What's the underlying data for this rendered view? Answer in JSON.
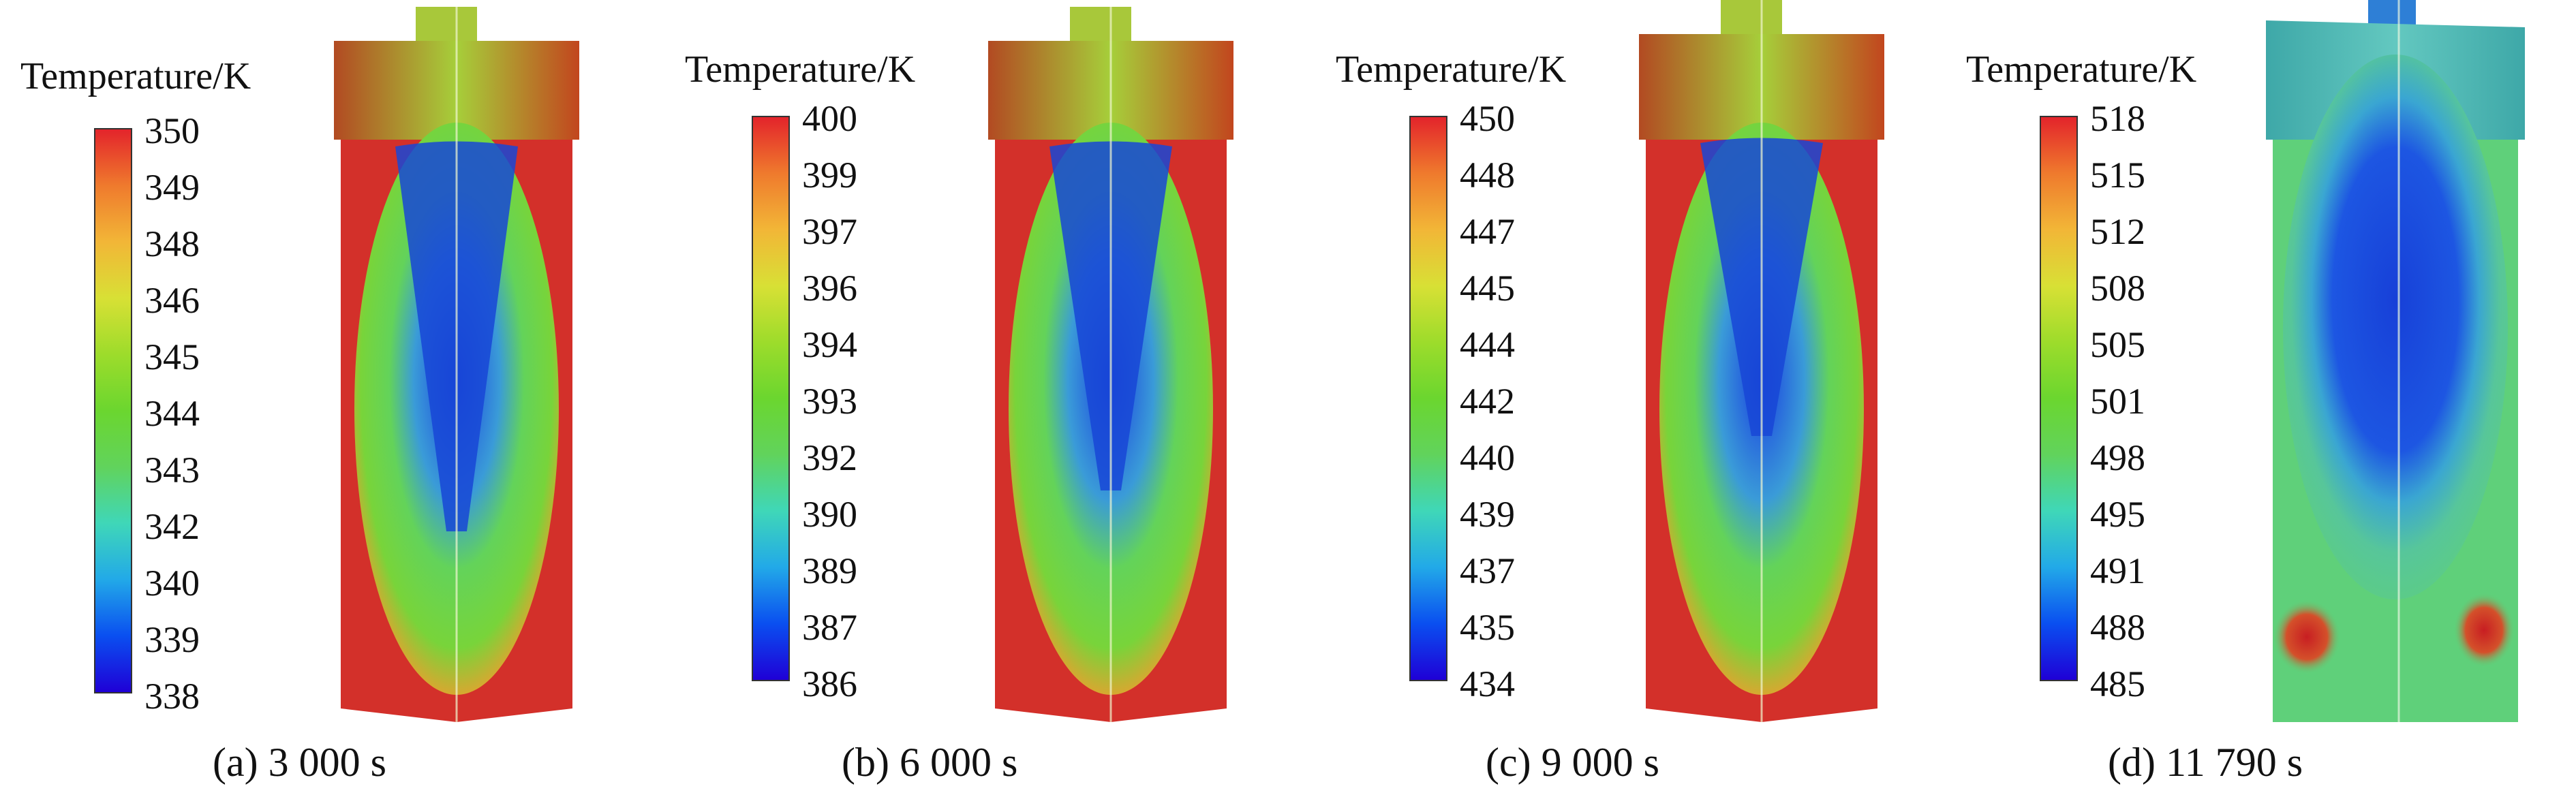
{
  "colorbar_gradient": [
    "#1f00d6",
    "#0a4ff0",
    "#22a9e8",
    "#3fd7b8",
    "#61d35c",
    "#6bd62f",
    "#9ddc2b",
    "#d8e035",
    "#f2b637",
    "#ef7a2d",
    "#ea3e2a",
    "#e3242b"
  ],
  "panels": [
    {
      "legend_title": "Temperature/K",
      "ticks": [
        "350",
        "349",
        "348",
        "346",
        "345",
        "344",
        "343",
        "342",
        "340",
        "339",
        "338"
      ],
      "caption": "(a) 3 000 s"
    },
    {
      "legend_title": "Temperature/K",
      "ticks": [
        "400",
        "399",
        "397",
        "396",
        "394",
        "393",
        "392",
        "390",
        "389",
        "387",
        "386"
      ],
      "caption": "(b) 6 000 s"
    },
    {
      "legend_title": "Temperature/K",
      "ticks": [
        "450",
        "448",
        "447",
        "445",
        "444",
        "442",
        "440",
        "439",
        "437",
        "435",
        "434"
      ],
      "caption": "(c) 9 000 s"
    },
    {
      "legend_title": "Temperature/K",
      "ticks": [
        "518",
        "515",
        "512",
        "508",
        "505",
        "501",
        "498",
        "495",
        "491",
        "488",
        "485"
      ],
      "caption": "(d) 11 790 s"
    }
  ]
}
